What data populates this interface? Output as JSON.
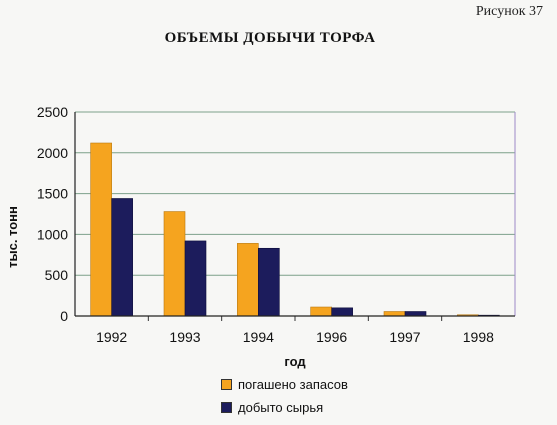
{
  "figure_label": "Рисунок 37",
  "colors": {
    "series1": "#f5a41f",
    "series2": "#1c1c5c",
    "grid": "#7da08a",
    "frame": "#9e8ac8"
  },
  "chart_data": {
    "type": "bar",
    "title": "ОБЪЕМЫ ДОБЫЧИ ТОРФА",
    "xlabel": "год",
    "ylabel": "тыс. тонн",
    "categories": [
      "1992",
      "1993",
      "1994",
      "1996",
      "1997",
      "1998"
    ],
    "ylim": [
      0,
      2500
    ],
    "yticks": [
      "0",
      "500",
      "1000",
      "1500",
      "2000",
      "2500"
    ],
    "grid": true,
    "legend_position": "bottom",
    "series": [
      {
        "name": "погашено запасов",
        "values": [
          2120,
          1280,
          890,
          110,
          55,
          15
        ]
      },
      {
        "name": "добыто сырья",
        "values": [
          1440,
          920,
          830,
          100,
          55,
          10
        ]
      }
    ]
  }
}
